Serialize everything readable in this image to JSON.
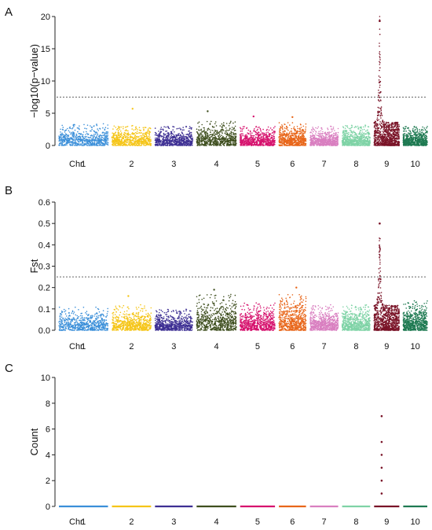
{
  "chromosomes": [
    {
      "label": "1",
      "color": "#3b8fd9",
      "length": 306
    },
    {
      "label": "2",
      "color": "#f5c518",
      "length": 244
    },
    {
      "label": "3",
      "color": "#3d2f93",
      "length": 235
    },
    {
      "label": "4",
      "color": "#3f4f1f",
      "length": 247
    },
    {
      "label": "5",
      "color": "#d6136e",
      "length": 217
    },
    {
      "label": "6",
      "color": "#e8661a",
      "length": 169
    },
    {
      "label": "7",
      "color": "#d97fc0",
      "length": 176
    },
    {
      "label": "8",
      "color": "#7fd3a6",
      "length": 175
    },
    {
      "label": "9",
      "color": "#7a1428",
      "length": 157
    },
    {
      "label": "10",
      "color": "#1f7a52",
      "length": 150
    }
  ],
  "chr_axis_label": "Chr",
  "chart_data": [
    {
      "panel": "A",
      "type": "scatter",
      "ylabel": "−log10(p−value)",
      "ylim": [
        0,
        20
      ],
      "yticks": [
        0,
        5,
        10,
        15,
        20
      ],
      "threshold": 7.5,
      "typical_max": [
        3.4,
        3.1,
        3.0,
        3.8,
        3.0,
        3.6,
        3.0,
        3.2,
        4.0,
        3.0
      ],
      "outlier_peaks": [
        {
          "chr": "2",
          "y": 5.7
        },
        {
          "chr": "4",
          "y": 5.3
        },
        {
          "chr": "5",
          "y": 4.5
        },
        {
          "chr": "6",
          "y": 4.4
        }
      ],
      "peak": {
        "chr": "9",
        "y": 19.3
      }
    },
    {
      "panel": "B",
      "type": "scatter",
      "ylabel": "Fst",
      "ylim": [
        0,
        0.6
      ],
      "yticks": [
        "0.0",
        "0.1",
        "0.2",
        "0.3",
        "0.4",
        "0.5",
        "0.6"
      ],
      "threshold": 0.25,
      "typical_max": [
        0.11,
        0.12,
        0.1,
        0.17,
        0.13,
        0.17,
        0.12,
        0.12,
        0.13,
        0.14
      ],
      "outlier_peaks": [
        {
          "chr": "2",
          "y": 0.16
        },
        {
          "chr": "4",
          "y": 0.19
        },
        {
          "chr": "6",
          "y": 0.2
        }
      ],
      "peak": {
        "chr": "9",
        "y": 0.5
      }
    },
    {
      "panel": "C",
      "type": "scatter",
      "ylabel": "Count",
      "ylim": [
        0,
        10
      ],
      "yticks": [
        0,
        2,
        4,
        6,
        8,
        10
      ],
      "baseline": 0,
      "points": [
        {
          "chr": "9",
          "y": 1
        },
        {
          "chr": "9",
          "y": 2
        },
        {
          "chr": "9",
          "y": 3
        },
        {
          "chr": "9",
          "y": 4
        },
        {
          "chr": "9",
          "y": 5
        },
        {
          "chr": "9",
          "y": 7
        }
      ]
    }
  ]
}
